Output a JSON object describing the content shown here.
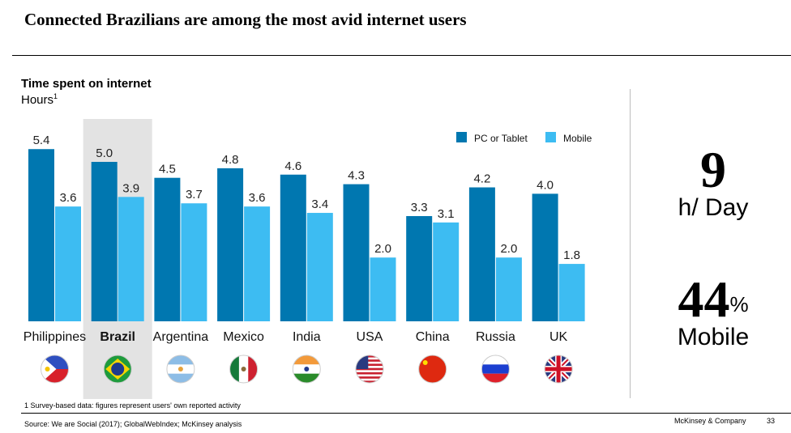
{
  "slide": {
    "title": "Connected Brazilians are among the most avid internet users",
    "footnote": "1 Survey-based data: figures represent users' own reported activity",
    "source": "Source: We are Social (2017); GlobalWebIndex; McKinsey analysis",
    "brand": "McKinsey & Company",
    "page_number": "33"
  },
  "stats": {
    "hours_value": "9",
    "hours_label": "h/ Day",
    "mobile_value": "44",
    "mobile_unit": "%",
    "mobile_label": "Mobile"
  },
  "chart_data": {
    "type": "bar",
    "title": "Time spent on internet",
    "ylabel": "Hours",
    "ylabel_superscript": "1",
    "xlabel": "",
    "ylim": [
      0,
      5.4
    ],
    "grid": false,
    "legend_position": "top-right",
    "highlight_category": "Brazil",
    "categories": [
      "Philippines",
      "Brazil",
      "Argentina",
      "Mexico",
      "India",
      "USA",
      "China",
      "Russia",
      "UK"
    ],
    "flag_icons": [
      "philippines-flag-icon",
      "brazil-flag-icon",
      "argentina-flag-icon",
      "mexico-flag-icon",
      "india-flag-icon",
      "usa-flag-icon",
      "china-flag-icon",
      "russia-flag-icon",
      "uk-flag-icon"
    ],
    "series": [
      {
        "name": "PC or Tablet",
        "color": "#0077B0",
        "values": [
          5.4,
          5.0,
          4.5,
          4.8,
          4.6,
          4.3,
          3.3,
          4.2,
          4.0
        ]
      },
      {
        "name": "Mobile",
        "color": "#3DBCF2",
        "values": [
          3.6,
          3.9,
          3.7,
          3.6,
          3.4,
          2.0,
          3.1,
          2.0,
          1.8
        ]
      }
    ],
    "highlight_color": "#E3E3E3"
  }
}
